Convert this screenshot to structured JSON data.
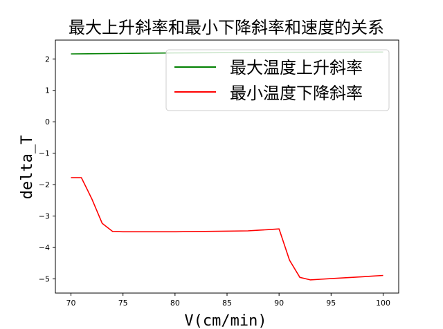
{
  "chart_data": {
    "type": "line",
    "title": "最大上升斜率和最小下降斜率和速度的关系",
    "xlabel": "V(cm/min)",
    "ylabel": "delta_T",
    "xlim": [
      68.5,
      101.5
    ],
    "ylim": [
      -5.45,
      2.6
    ],
    "x_ticks": [
      70,
      75,
      80,
      85,
      90,
      95,
      100
    ],
    "y_ticks": [
      2,
      1,
      0,
      -1,
      -2,
      -3,
      -4,
      -5
    ],
    "x_tick_labels": [
      "70",
      "75",
      "80",
      "85",
      "90",
      "95",
      "100"
    ],
    "y_tick_labels": [
      "2",
      "1",
      "0",
      "−1",
      "−2",
      "−3",
      "−4",
      "−5"
    ],
    "grid": false,
    "legend_position": "top-right",
    "series": [
      {
        "name": "最大温度上升斜率",
        "color": "#008000",
        "x": [
          70,
          80,
          90,
          100
        ],
        "y": [
          2.16,
          2.19,
          2.21,
          2.22
        ]
      },
      {
        "name": "最小温度下降斜率",
        "color": "#ff0000",
        "x": [
          70,
          71,
          72,
          73,
          74,
          75,
          80,
          85,
          87,
          88,
          89,
          90,
          91,
          92,
          93,
          94,
          95,
          96,
          97,
          98,
          99,
          100
        ],
        "y": [
          -1.78,
          -1.78,
          -2.45,
          -3.23,
          -3.49,
          -3.5,
          -3.5,
          -3.48,
          -3.47,
          -3.45,
          -3.43,
          -3.41,
          -4.4,
          -4.95,
          -5.03,
          -5.01,
          -4.99,
          -4.97,
          -4.95,
          -4.93,
          -4.91,
          -4.89
        ]
      }
    ]
  }
}
